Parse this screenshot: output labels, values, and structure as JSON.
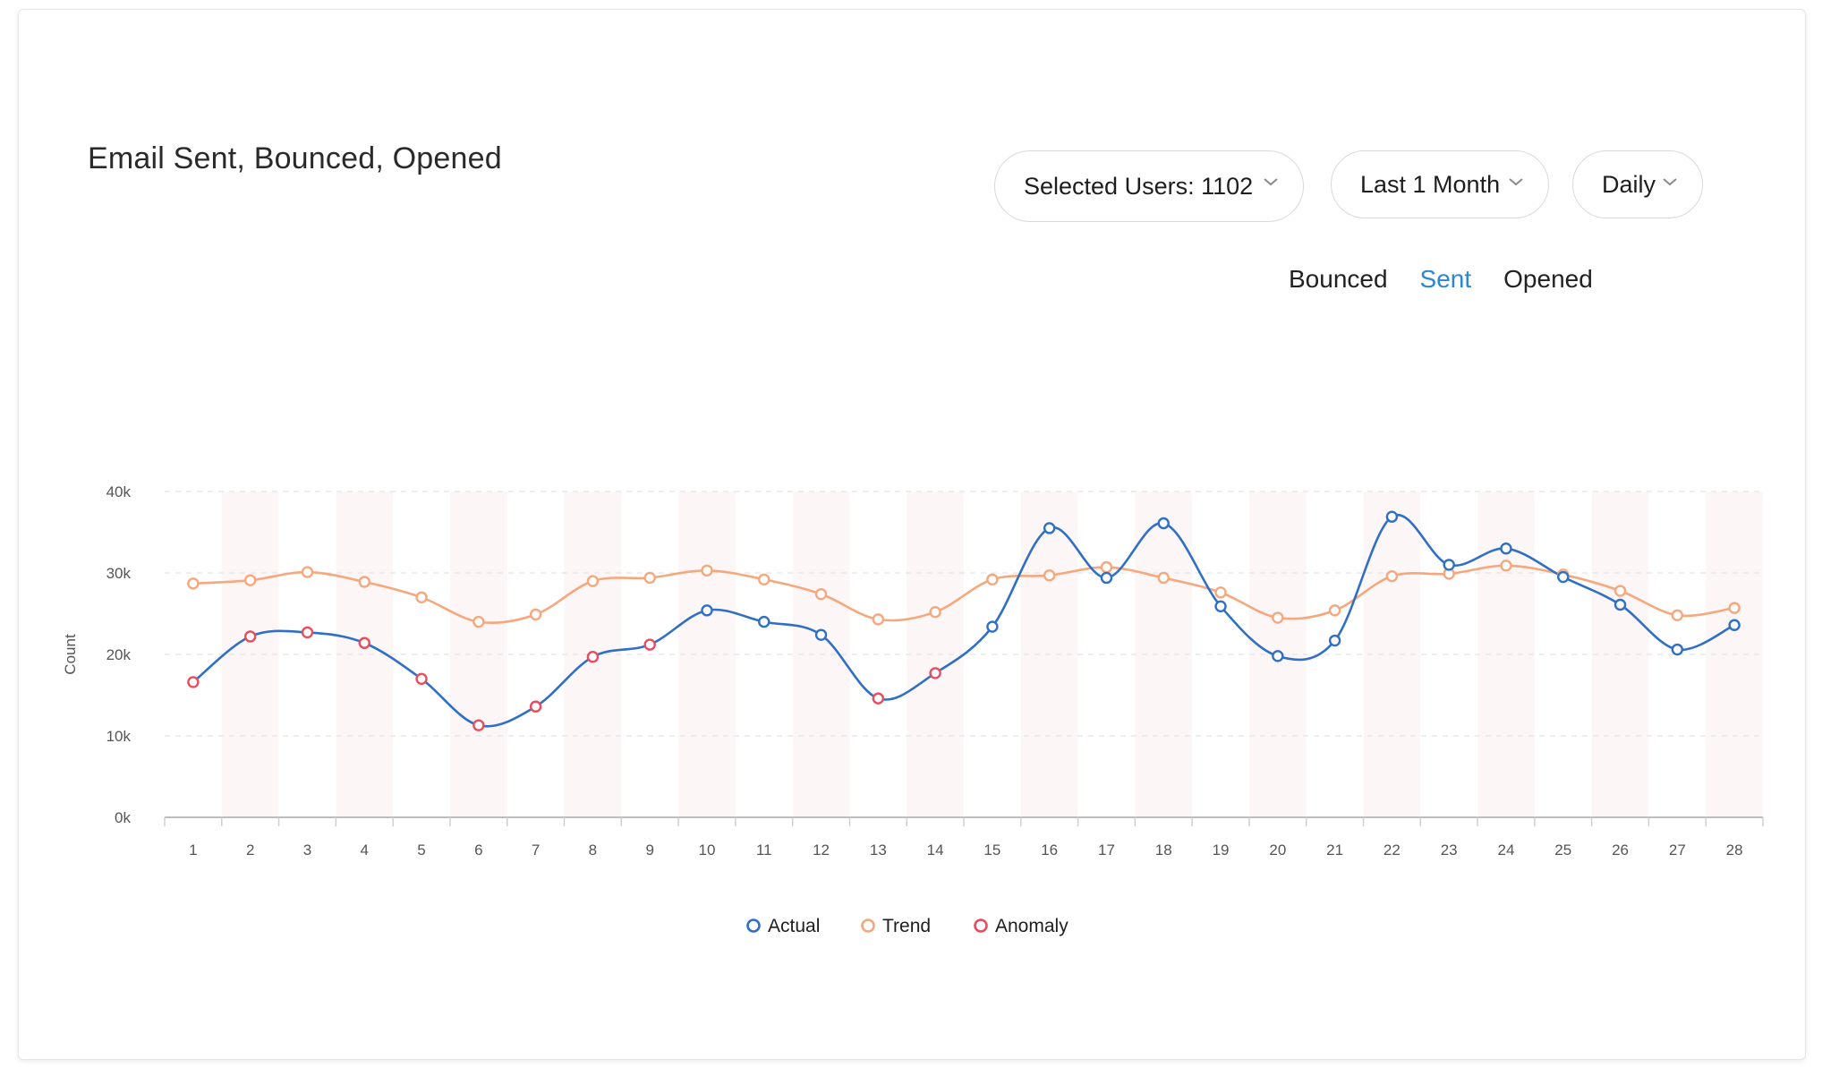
{
  "title": "Email Sent, Bounced, Opened",
  "filters": {
    "users": "Selected Users: 1102",
    "range": "Last 1 Month",
    "granularity": "Daily"
  },
  "metric_tabs": [
    {
      "label": "Bounced",
      "active": false
    },
    {
      "label": "Sent",
      "active": true
    },
    {
      "label": "Opened",
      "active": false
    }
  ],
  "colors": {
    "actual": "#2f6fc6",
    "trend": "#f6a77c",
    "anomaly": "#ea4b5e",
    "band": "#fdf6f7",
    "grid": "#e8e8e8",
    "active_tab": "#2a86d6"
  },
  "chart_data": {
    "type": "line",
    "ylabel": "Count",
    "xlabel": "",
    "ylim": [
      0,
      40000
    ],
    "yticks": [
      0,
      10000,
      20000,
      30000,
      40000
    ],
    "ytick_labels": [
      "0k",
      "10k",
      "20k",
      "30k",
      "40k"
    ],
    "x": [
      1,
      2,
      3,
      4,
      5,
      6,
      7,
      8,
      9,
      10,
      11,
      12,
      13,
      14,
      15,
      16,
      17,
      18,
      19,
      20,
      21,
      22,
      23,
      24,
      25,
      26,
      27,
      28
    ],
    "series": [
      {
        "name": "Actual",
        "values": [
          16600,
          22200,
          22700,
          21400,
          17000,
          11300,
          13600,
          19700,
          21200,
          25400,
          24000,
          22400,
          14600,
          17700,
          23400,
          35500,
          29400,
          36100,
          25900,
          19800,
          21700,
          36900,
          31000,
          33000,
          29500,
          26100,
          20600,
          23600
        ]
      },
      {
        "name": "Trend",
        "values": [
          28700,
          29100,
          30100,
          28900,
          27000,
          24000,
          24900,
          29000,
          29400,
          30300,
          29200,
          27400,
          24300,
          25200,
          29200,
          29700,
          30700,
          29400,
          27600,
          24500,
          25400,
          29600,
          29900,
          30900,
          29800,
          27800,
          24800,
          25700
        ]
      }
    ],
    "anomaly_days": [
      1,
      2,
      3,
      4,
      5,
      6,
      7,
      8,
      9,
      13,
      14
    ],
    "legend": [
      "Actual",
      "Trend",
      "Anomaly"
    ],
    "legend_position": "bottom-center",
    "grid": true
  }
}
